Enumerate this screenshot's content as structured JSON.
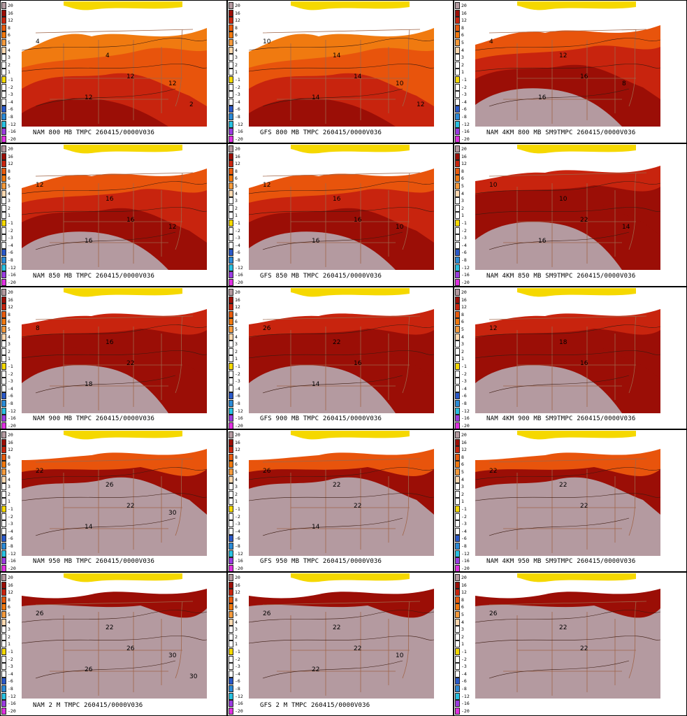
{
  "legend": {
    "values": [
      "20",
      "16",
      "12",
      "8",
      "6",
      "5",
      "4",
      "3",
      "2",
      "1",
      "-1",
      "-2",
      "-3",
      "-4",
      "-6",
      "-8",
      "-12",
      "-16",
      "-20"
    ],
    "colors": [
      "#b49aa0",
      "#9b0e06",
      "#c8240e",
      "#e85a0c",
      "#f0780e",
      "#f59a3c",
      "#ffd9b0",
      "#ffffff",
      "#ffffff",
      "#ffffff",
      "#f5d800",
      "#ffffff",
      "#ffffff",
      "#ffffff",
      "#2a58c8",
      "#2b8ad6",
      "#28c0e0",
      "#9a3ce0",
      "#e030e0"
    ]
  },
  "colors": {
    "pink": "#b49aa0",
    "dark_red": "#9b0e06",
    "red": "#c8240e",
    "orange_red": "#e8540c",
    "orange": "#f07a10",
    "white": "#ffffff",
    "yellow": "#f5d800",
    "state_line": "#a0664a",
    "contour": "#3a1a10"
  },
  "panels": [
    {
      "caption": "NAM 800 MB TMPC 260415/0000V036",
      "level": 0,
      "labels": [
        "4",
        "4",
        "12",
        "12",
        "12",
        "2"
      ]
    },
    {
      "caption": "GFS 800 MB TMPC 260415/0000V036",
      "level": 0,
      "labels": [
        "10",
        "14",
        "14",
        "14",
        "10",
        "12"
      ]
    },
    {
      "caption": "NAM 4KM 800 MB SM9TMPC 260415/0000V036",
      "level": 1,
      "labels": [
        "4",
        "12",
        "16",
        "16",
        "8"
      ]
    },
    {
      "caption": "NAM 850 MB TMPC 260415/0000V036",
      "level": 1,
      "labels": [
        "12",
        "16",
        "16",
        "16",
        "12"
      ]
    },
    {
      "caption": "GFS 850 MB TMPC 260415/0000V036",
      "level": 1,
      "labels": [
        "12",
        "16",
        "16",
        "16",
        "10"
      ]
    },
    {
      "caption": "NAM 4KM 850 MB SM9TMPC 260415/0000V036",
      "level": 2,
      "labels": [
        "10",
        "10",
        "22",
        "16",
        "14"
      ]
    },
    {
      "caption": "NAM 900 MB TMPC 260415/0000V036",
      "level": 2,
      "labels": [
        "8",
        "16",
        "22",
        "18"
      ]
    },
    {
      "caption": "GFS 900 MB TMPC 260415/0000V036",
      "level": 2,
      "labels": [
        "26",
        "22",
        "16",
        "14"
      ]
    },
    {
      "caption": "NAM 4KM 900 MB SM9TMPC 260415/0000V036",
      "level": 2,
      "labels": [
        "12",
        "18",
        "16"
      ]
    },
    {
      "caption": "NAM 950 MB TMPC 260415/0000V036",
      "level": 3,
      "labels": [
        "22",
        "26",
        "22",
        "14",
        "30"
      ]
    },
    {
      "caption": "GFS 950 MB TMPC 260415/0000V036",
      "level": 3,
      "labels": [
        "26",
        "22",
        "22",
        "14"
      ]
    },
    {
      "caption": "NAM 4KM 950 MB SM9TMPC 260415/0000V036",
      "level": 3,
      "labels": [
        "22",
        "22",
        "22"
      ]
    },
    {
      "caption": "NAM 2 M TMPC 260415/0000V036",
      "level": 4,
      "labels": [
        "26",
        "22",
        "26",
        "26",
        "30",
        "30"
      ]
    },
    {
      "caption": "GFS 2 M TMPC 260415/0000V036",
      "level": 4,
      "labels": [
        "26",
        "22",
        "22",
        "22",
        "10"
      ]
    },
    {
      "caption": "",
      "level": 4,
      "labels": [
        "26",
        "22",
        "22"
      ]
    }
  ]
}
